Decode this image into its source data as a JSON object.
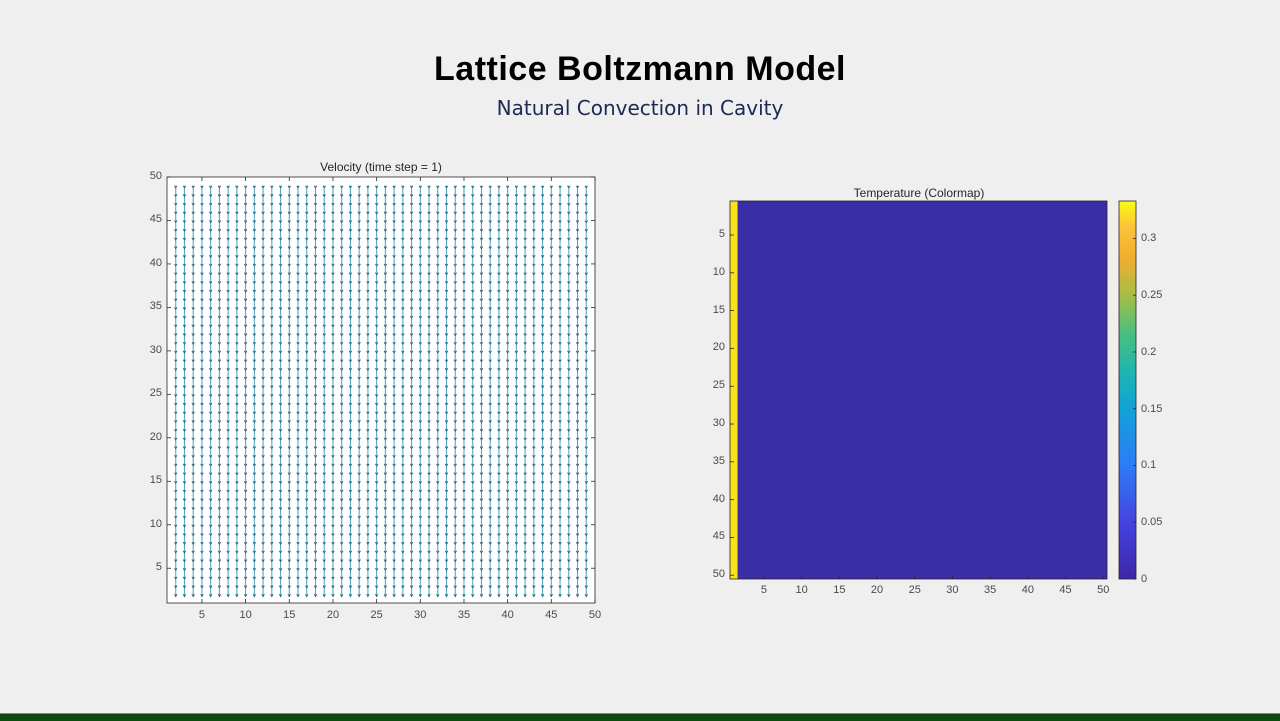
{
  "slide": {
    "title": "Lattice Boltzmann Model",
    "subtitle": "Natural Convection in Cavity",
    "colors": {
      "background": "#efefef",
      "title": "#000000",
      "subtitle": "#1c2a55",
      "bottom_bar": "#0d4a10"
    }
  },
  "chart_data": [
    {
      "type": "quiver",
      "title": "Velocity (time step = 1)",
      "xlabel": "",
      "ylabel": "",
      "xlim": [
        1,
        50
      ],
      "ylim": [
        1,
        50
      ],
      "xticks": [
        5,
        10,
        15,
        20,
        25,
        30,
        35,
        40,
        45,
        50
      ],
      "yticks": [
        5,
        10,
        15,
        20,
        25,
        30,
        35,
        40,
        45,
        50
      ],
      "grid": false,
      "description": "Uniform downward-pointing velocity arrows on a 48x48 grid (x = 2..49, y = 2..49), small magnitude",
      "grid_x": [
        2,
        49
      ],
      "grid_y": [
        2,
        49
      ],
      "arrow_direction": "down",
      "arrow_color": "#3a9bbf"
    },
    {
      "type": "heatmap",
      "title": "Temperature (Colormap)",
      "xlabel": "",
      "ylabel": "",
      "xlim": [
        1,
        50
      ],
      "ylim": [
        1,
        50
      ],
      "y_reversed": true,
      "xticks": [
        5,
        10,
        15,
        20,
        25,
        30,
        35,
        40,
        45,
        50
      ],
      "yticks": [
        5,
        10,
        15,
        20,
        25,
        30,
        35,
        40,
        45,
        50
      ],
      "colormap": "parula",
      "clim": [
        0,
        0.333
      ],
      "colorbar_ticks": [
        0,
        0.05,
        0.1,
        0.15,
        0.2,
        0.25,
        0.3
      ],
      "description": "Column x=1 has value ~0.333 (hot wall, yellow); all other cells are 0 (dark blue)",
      "hot_column": 1,
      "hot_value": 0.333,
      "cold_value": 0,
      "colors": {
        "hot": "#f9e21a",
        "cold": "#3a2ea6"
      }
    }
  ]
}
